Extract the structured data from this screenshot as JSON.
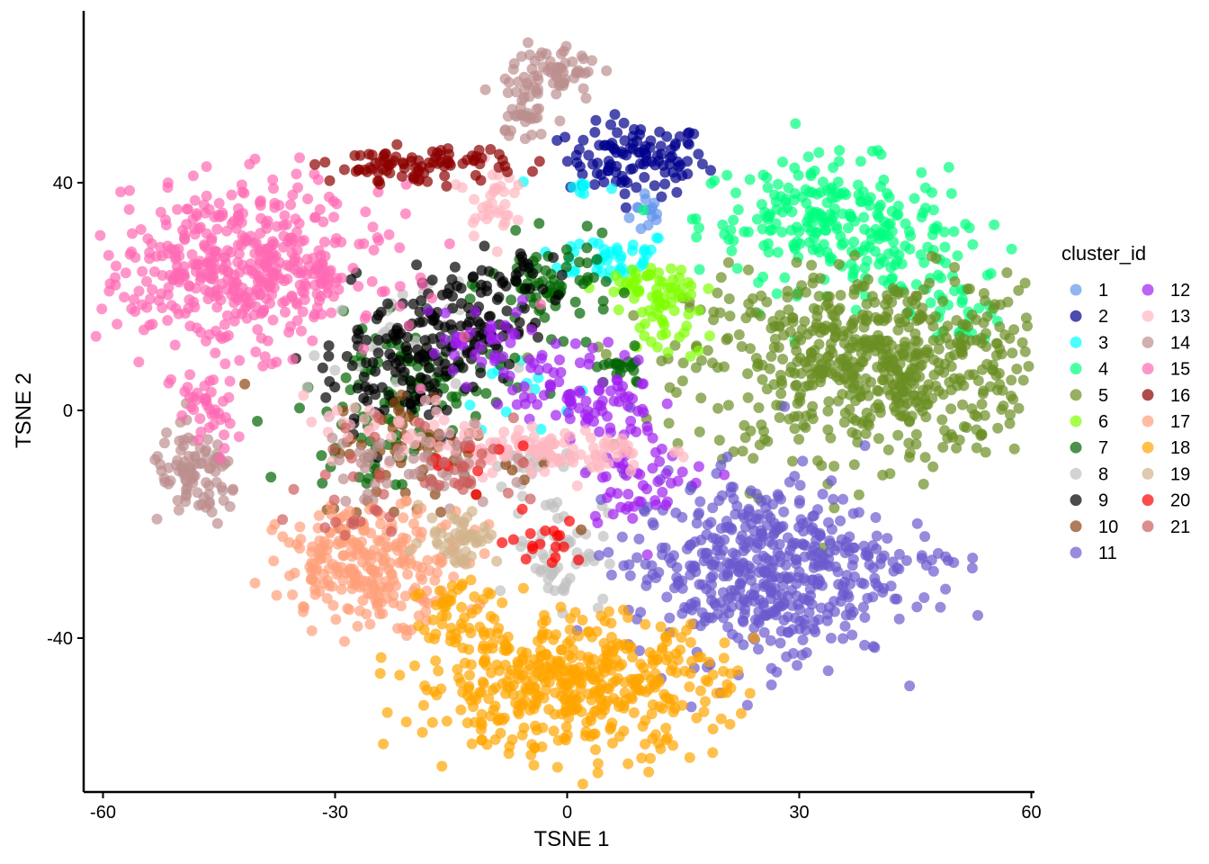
{
  "chart_data": {
    "type": "scatter",
    "title": "",
    "xlabel": "TSNE 1",
    "ylabel": "TSNE 2",
    "xlim": [
      -62,
      62
    ],
    "ylim": [
      -67,
      70
    ],
    "x_ticks": [
      -60,
      -30,
      0,
      30,
      60
    ],
    "y_ticks": [
      -40,
      0,
      40
    ],
    "grid": false,
    "legend": {
      "title": "cluster_id",
      "placement": "right",
      "columns": 2
    },
    "point_opacity": 0.7,
    "series": [
      {
        "name": "1",
        "color": "#6495ED",
        "clusters": [
          {
            "cx": 10.5,
            "cy": 35,
            "sx": 1.2,
            "sy": 2.2,
            "n": 14
          }
        ]
      },
      {
        "name": "2",
        "color": "#00008B",
        "clusters": [
          {
            "cx": 9,
            "cy": 44,
            "sx": 4.5,
            "sy": 3.2,
            "n": 110
          }
        ]
      },
      {
        "name": "3",
        "color": "#00FFFF",
        "clusters": [
          {
            "cx": 5,
            "cy": 27,
            "sx": 4.5,
            "sy": 2.2,
            "n": 45
          },
          {
            "cx": 2,
            "cy": 39,
            "sx": 2.2,
            "sy": 1,
            "n": 8
          },
          {
            "cx": -7,
            "cy": 5,
            "sx": 4,
            "sy": 4,
            "n": 12
          }
        ]
      },
      {
        "name": "4",
        "color": "#00FF7F",
        "clusters": [
          {
            "cx": 33,
            "cy": 34,
            "sx": 8,
            "sy": 5,
            "n": 200
          },
          {
            "cx": 43,
            "cy": 25,
            "sx": 6,
            "sy": 5,
            "n": 70
          },
          {
            "cx": 51,
            "cy": 18,
            "sx": 3,
            "sy": 3,
            "n": 25
          }
        ]
      },
      {
        "name": "5",
        "color": "#6B8E23",
        "clusters": [
          {
            "cx": 40,
            "cy": 8,
            "sx": 12,
            "sy": 8,
            "n": 650
          }
        ]
      },
      {
        "name": "6",
        "color": "#7FFF00",
        "clusters": [
          {
            "cx": 10,
            "cy": 22,
            "sx": 3,
            "sy": 2,
            "n": 40
          },
          {
            "cx": 13,
            "cy": 16,
            "sx": 2,
            "sy": 4,
            "n": 40
          }
        ]
      },
      {
        "name": "7",
        "color": "#006400",
        "clusters": [
          {
            "cx": -2,
            "cy": 22,
            "sx": 4,
            "sy": 4,
            "n": 70
          },
          {
            "cx": 7,
            "cy": 7,
            "sx": 2,
            "sy": 1.5,
            "n": 20
          },
          {
            "cx": -20,
            "cy": 5,
            "sx": 6,
            "sy": 5,
            "n": 90
          },
          {
            "cx": -25,
            "cy": -7,
            "sx": 5,
            "sy": 4,
            "n": 30
          }
        ]
      },
      {
        "name": "8",
        "color": "#C0C0C0",
        "clusters": [
          {
            "cx": -1,
            "cy": -24,
            "sx": 3,
            "sy": 5,
            "n": 60
          },
          {
            "cx": -6,
            "cy": -10,
            "sx": 3,
            "sy": 2,
            "n": 25
          },
          {
            "cx": -22,
            "cy": 10,
            "sx": 6,
            "sy": 6,
            "n": 40
          }
        ]
      },
      {
        "name": "9",
        "color": "#000000",
        "clusters": [
          {
            "cx": -15,
            "cy": 15,
            "sx": 5,
            "sy": 5,
            "n": 120
          },
          {
            "cx": -22,
            "cy": 6,
            "sx": 5,
            "sy": 6,
            "n": 80
          },
          {
            "cx": -5,
            "cy": 23,
            "sx": 3,
            "sy": 3,
            "n": 25
          }
        ]
      },
      {
        "name": "10",
        "color": "#8B4513",
        "clusters": [
          {
            "cx": -18,
            "cy": -8,
            "sx": 7,
            "sy": 6,
            "n": 70
          }
        ]
      },
      {
        "name": "11",
        "color": "#6A5ACD",
        "clusters": [
          {
            "cx": 25,
            "cy": -28,
            "sx": 8.5,
            "sy": 8,
            "n": 500
          },
          {
            "cx": 44,
            "cy": -26,
            "sx": 3.5,
            "sy": 1,
            "n": 18
          }
        ]
      },
      {
        "name": "12",
        "color": "#A020F0",
        "clusters": [
          {
            "cx": 2,
            "cy": 3,
            "sx": 5,
            "sy": 4,
            "n": 80
          },
          {
            "cx": 10,
            "cy": -10,
            "sx": 4,
            "sy": 5,
            "n": 60
          },
          {
            "cx": -10,
            "cy": 12,
            "sx": 4,
            "sy": 4,
            "n": 40
          }
        ]
      },
      {
        "name": "13",
        "color": "#FFB6C1",
        "clusters": [
          {
            "cx": -10,
            "cy": 37,
            "sx": 1.5,
            "sy": 3,
            "n": 35
          },
          {
            "cx": -3,
            "cy": -7,
            "sx": 7,
            "sy": 2,
            "n": 110
          },
          {
            "cx": -22,
            "cy": -4,
            "sx": 6,
            "sy": 3,
            "n": 40
          }
        ]
      },
      {
        "name": "14",
        "color": "#BC8F8F",
        "clusters": [
          {
            "cx": -2,
            "cy": 59,
            "sx": 3,
            "sy": 3,
            "n": 70
          },
          {
            "cx": -5,
            "cy": 51,
            "sx": 1.5,
            "sy": 2,
            "n": 25
          },
          {
            "cx": -48,
            "cy": -12,
            "sx": 3,
            "sy": 4,
            "n": 90
          },
          {
            "cx": -20,
            "cy": -10,
            "sx": 6,
            "sy": 4,
            "n": 50
          }
        ]
      },
      {
        "name": "15",
        "color": "#FF69B4",
        "clusters": [
          {
            "cx": -42,
            "cy": 25,
            "sx": 9,
            "sy": 7,
            "n": 480
          },
          {
            "cx": -47,
            "cy": 0,
            "sx": 2,
            "sy": 4,
            "n": 40
          }
        ]
      },
      {
        "name": "16",
        "color": "#8B0000",
        "clusters": [
          {
            "cx": -19,
            "cy": 43,
            "sx": 6,
            "sy": 1.5,
            "n": 90
          }
        ]
      },
      {
        "name": "17",
        "color": "#FFA07A",
        "clusters": [
          {
            "cx": -25,
            "cy": -27,
            "sx": 6,
            "sy": 5,
            "n": 260
          }
        ]
      },
      {
        "name": "18",
        "color": "#FFA500",
        "clusters": [
          {
            "cx": 0,
            "cy": -48,
            "sx": 10,
            "sy": 6,
            "n": 480
          },
          {
            "cx": -14,
            "cy": -36,
            "sx": 3,
            "sy": 4,
            "n": 40
          }
        ]
      },
      {
        "name": "19",
        "color": "#D2B48C",
        "clusters": [
          {
            "cx": -14,
            "cy": -22,
            "sx": 2.5,
            "sy": 2.5,
            "n": 50
          }
        ]
      },
      {
        "name": "20",
        "color": "#FF0000",
        "clusters": [
          {
            "cx": -3,
            "cy": -23,
            "sx": 2.5,
            "sy": 2,
            "n": 18
          },
          {
            "cx": -12,
            "cy": -8,
            "sx": 3,
            "sy": 2,
            "n": 8
          }
        ]
      },
      {
        "name": "21",
        "color": "#CD5C5C",
        "clusters": [
          {
            "cx": -15,
            "cy": -10,
            "sx": 6,
            "sy": 5,
            "n": 30
          },
          {
            "cx": -26,
            "cy": -15,
            "sx": 5,
            "sy": 5,
            "n": 20
          }
        ]
      }
    ]
  }
}
